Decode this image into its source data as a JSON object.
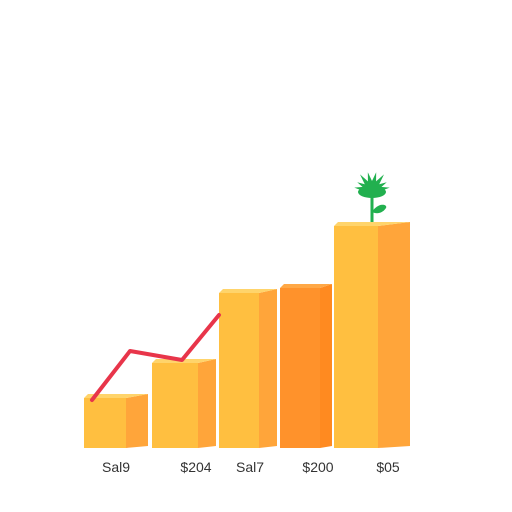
{
  "chart_data": {
    "type": "bar",
    "categories": [
      "Sal9",
      "$204",
      "Sal7",
      "$200",
      "$05"
    ],
    "values": [
      50,
      85,
      155,
      160,
      222
    ],
    "trend_line": [
      48,
      97,
      88,
      133
    ],
    "grid": false,
    "legend": "none",
    "ylim": [
      0,
      240
    ],
    "colors": {
      "bar_front": [
        "#FFBF40",
        "#FFBF40",
        "#FFBF40",
        "#FF922B",
        "#FFBF40"
      ],
      "bar_side": [
        "#FFA53A",
        "#FFA53A",
        "#FFA53A",
        "#FF8A20",
        "#FFA53A"
      ],
      "bar_top": [
        "#FFD46B",
        "#FFD46B",
        "#FFD46B",
        "#FFA846",
        "#FFD46B"
      ],
      "trend": "#E8354A",
      "plant": "#22B04F"
    },
    "decoration": "plant-sprout-icon"
  }
}
